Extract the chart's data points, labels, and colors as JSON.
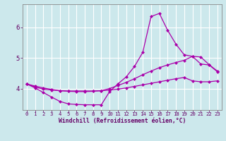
{
  "xlabel": "Windchill (Refroidissement éolien,°C)",
  "bg_color": "#cce8ec",
  "grid_color": "#ffffff",
  "line_color": "#aa00aa",
  "xlim": [
    -0.5,
    23.5
  ],
  "ylim": [
    3.3,
    6.75
  ],
  "xticks": [
    0,
    1,
    2,
    3,
    4,
    5,
    6,
    7,
    8,
    9,
    10,
    11,
    12,
    13,
    14,
    15,
    16,
    17,
    18,
    19,
    20,
    21,
    22,
    23
  ],
  "yticks": [
    4,
    5,
    6
  ],
  "series": {
    "line1_x": [
      0,
      1,
      2,
      3,
      4,
      5,
      6,
      7,
      8,
      9,
      10,
      11,
      12,
      13,
      14,
      15,
      16,
      17,
      18,
      19,
      20,
      21,
      22,
      23
    ],
    "line1_y": [
      4.15,
      4.02,
      3.87,
      3.72,
      3.58,
      3.5,
      3.48,
      3.47,
      3.47,
      3.47,
      3.9,
      4.15,
      4.38,
      4.72,
      5.18,
      6.35,
      6.45,
      5.9,
      5.45,
      5.1,
      5.05,
      4.8,
      4.77,
      4.55
    ],
    "line2_x": [
      0,
      1,
      2,
      3,
      4,
      5,
      6,
      7,
      8,
      9,
      10,
      11,
      12,
      13,
      14,
      15,
      16,
      17,
      18,
      19,
      20,
      21,
      22,
      23
    ],
    "line2_y": [
      4.15,
      4.08,
      4.02,
      3.97,
      3.93,
      3.91,
      3.9,
      3.9,
      3.91,
      3.93,
      4.0,
      4.1,
      4.2,
      4.32,
      4.45,
      4.57,
      4.68,
      4.77,
      4.85,
      4.92,
      5.05,
      5.03,
      4.78,
      4.57
    ],
    "line3_x": [
      0,
      1,
      2,
      3,
      4,
      5,
      6,
      7,
      8,
      9,
      10,
      11,
      12,
      13,
      14,
      15,
      16,
      17,
      18,
      19,
      20,
      21,
      22,
      23
    ],
    "line3_y": [
      4.15,
      4.05,
      3.98,
      3.95,
      3.93,
      3.92,
      3.92,
      3.92,
      3.92,
      3.93,
      3.95,
      3.98,
      4.02,
      4.07,
      4.12,
      4.17,
      4.22,
      4.27,
      4.32,
      4.36,
      4.25,
      4.22,
      4.22,
      4.25
    ]
  }
}
